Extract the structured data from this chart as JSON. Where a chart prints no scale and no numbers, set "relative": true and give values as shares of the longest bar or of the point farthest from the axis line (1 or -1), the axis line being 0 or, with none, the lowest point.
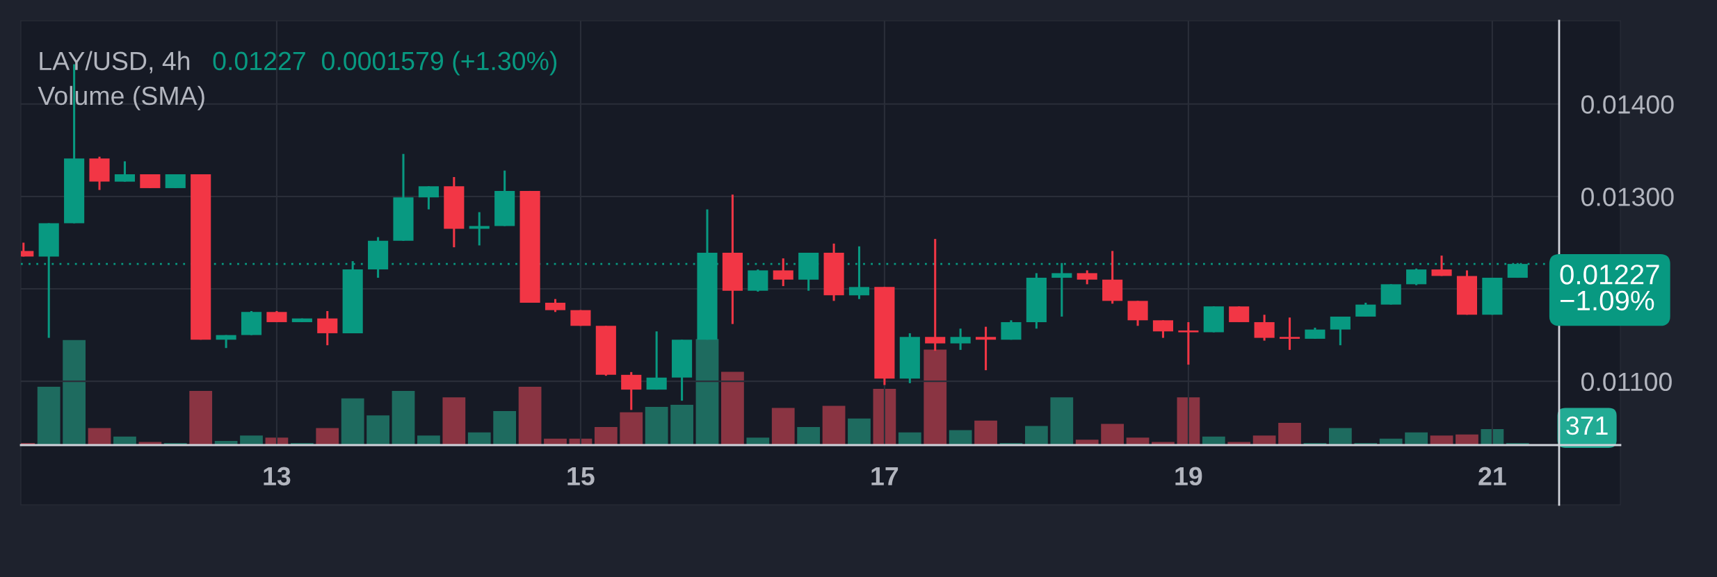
{
  "chart_data": [
    {
      "type": "candlestick",
      "title": "LAY/USD, 4h",
      "annotations": [
        "0.01227  0.0001579 (+1.30%)",
        "Volume (SMA)"
      ],
      "x": [
        11.3333,
        11.5,
        11.6667,
        11.8333,
        12,
        12.1667,
        12.3333,
        12.5,
        12.6667,
        12.8333,
        13,
        13.1667,
        13.3333,
        13.5,
        13.6667,
        13.8333,
        14,
        14.1667,
        14.3333,
        14.5,
        14.6667,
        14.8333,
        15,
        15.1667,
        15.3333,
        15.5,
        15.6667,
        15.8333,
        16,
        16.1667,
        16.3333,
        16.5,
        16.6667,
        16.8333,
        17,
        17.1667,
        17.3333,
        17.5,
        17.6667,
        17.8333,
        18,
        18.1667,
        18.3333,
        18.5,
        18.6667,
        18.8333,
        19,
        19.1667,
        19.3333,
        19.5,
        19.6667,
        19.8333,
        20,
        20.1667,
        20.3333,
        20.5,
        20.6667,
        20.8333,
        21,
        21.1667
      ],
      "xlim": [
        11.316,
        21.44
      ],
      "xticks": [
        13,
        15,
        17,
        19,
        21
      ],
      "ylim": [
        0.01031,
        0.0149
      ],
      "yticks": [
        {
          "value": 0.011,
          "label": "0.01100"
        },
        {
          "value": 0.012,
          "label": null
        },
        {
          "value": 0.013,
          "label": "0.01300"
        },
        {
          "value": 0.014,
          "label": "0.01400"
        }
      ],
      "grid": true,
      "ref_lines": [
        {
          "axis": "y",
          "value": 0.01227,
          "label": "0.01227\n−1.09%",
          "color": "#089981",
          "line_style": "dotted"
        }
      ],
      "ohlc": [
        [
          0.01241,
          0.0125,
          0.01235,
          0.01235
        ],
        [
          0.01235,
          0.01271,
          0.01147,
          0.01271
        ],
        [
          0.01271,
          0.01443,
          0.01271,
          0.01341
        ],
        [
          0.01341,
          0.01343,
          0.01307,
          0.01316
        ],
        [
          0.01316,
          0.01338,
          0.01316,
          0.01324
        ],
        [
          0.01324,
          0.01324,
          0.01309,
          0.01309
        ],
        [
          0.01309,
          0.01324,
          0.01309,
          0.01324
        ],
        [
          0.01324,
          0.01324,
          0.01145,
          0.01145
        ],
        [
          0.01145,
          0.0115,
          0.01136,
          0.0115
        ],
        [
          0.0115,
          0.01176,
          0.0115,
          0.01175
        ],
        [
          0.01175,
          0.01176,
          0.01164,
          0.01164
        ],
        [
          0.01164,
          0.01168,
          0.01164,
          0.01168
        ],
        [
          0.01168,
          0.01176,
          0.01139,
          0.01152
        ],
        [
          0.01152,
          0.0123,
          0.01152,
          0.01221
        ],
        [
          0.01221,
          0.01256,
          0.01212,
          0.01252
        ],
        [
          0.01252,
          0.01346,
          0.01252,
          0.01299
        ],
        [
          0.01299,
          0.01311,
          0.01286,
          0.01311
        ],
        [
          0.01311,
          0.01321,
          0.01245,
          0.01265
        ],
        [
          0.01265,
          0.01283,
          0.01247,
          0.01268
        ],
        [
          0.01268,
          0.01328,
          0.01268,
          0.01306
        ],
        [
          0.01306,
          0.01306,
          0.01185,
          0.01185
        ],
        [
          0.01185,
          0.01189,
          0.01175,
          0.01177
        ],
        [
          0.01177,
          0.01177,
          0.0116,
          0.0116
        ],
        [
          0.0116,
          0.0116,
          0.01106,
          0.01107
        ],
        [
          0.01107,
          0.0111,
          0.01069,
          0.01091
        ],
        [
          0.01091,
          0.01154,
          0.01091,
          0.01104
        ],
        [
          0.01104,
          0.01145,
          0.01079,
          0.01145
        ],
        [
          0.01145,
          0.01286,
          0.01145,
          0.01239
        ],
        [
          0.01239,
          0.01302,
          0.01162,
          0.01198
        ],
        [
          0.01198,
          0.01221,
          0.01197,
          0.0122
        ],
        [
          0.0122,
          0.01233,
          0.01203,
          0.0121
        ],
        [
          0.0121,
          0.01239,
          0.01198,
          0.01239
        ],
        [
          0.01239,
          0.01249,
          0.01187,
          0.01193
        ],
        [
          0.01193,
          0.01246,
          0.01189,
          0.01202
        ],
        [
          0.01202,
          0.01202,
          0.01096,
          0.01103
        ],
        [
          0.01103,
          0.01152,
          0.01098,
          0.01148
        ],
        [
          0.01148,
          0.01254,
          0.01133,
          0.01141
        ],
        [
          0.01141,
          0.01157,
          0.01134,
          0.01148
        ],
        [
          0.01148,
          0.01159,
          0.01112,
          0.01145
        ],
        [
          0.01145,
          0.01166,
          0.01145,
          0.01164
        ],
        [
          0.01164,
          0.01217,
          0.01157,
          0.01212
        ],
        [
          0.01212,
          0.01228,
          0.0117,
          0.01217
        ],
        [
          0.01217,
          0.0122,
          0.01205,
          0.0121
        ],
        [
          0.0121,
          0.01241,
          0.01184,
          0.01187
        ],
        [
          0.01187,
          0.01187,
          0.0116,
          0.01166
        ],
        [
          0.01166,
          0.01166,
          0.01147,
          0.01154
        ],
        [
          0.01155,
          0.01164,
          0.01118,
          0.01153
        ],
        [
          0.01153,
          0.01181,
          0.01153,
          0.01181
        ],
        [
          0.01181,
          0.01181,
          0.01164,
          0.01164
        ],
        [
          0.01164,
          0.01172,
          0.01144,
          0.01147
        ],
        [
          0.01148,
          0.01169,
          0.01134,
          0.01146
        ],
        [
          0.01146,
          0.01158,
          0.01146,
          0.01156
        ],
        [
          0.01156,
          0.0117,
          0.01139,
          0.0117
        ],
        [
          0.0117,
          0.01185,
          0.0117,
          0.01183
        ],
        [
          0.01183,
          0.01205,
          0.01183,
          0.01205
        ],
        [
          0.01205,
          0.01222,
          0.01204,
          0.01221
        ],
        [
          0.01221,
          0.01236,
          0.01214,
          0.01214
        ],
        [
          0.01214,
          0.0122,
          0.01172,
          0.01172
        ],
        [
          0.01172,
          0.01212,
          0.01172,
          0.01212
        ],
        [
          0.01212,
          0.01228,
          0.01212,
          0.01227
        ]
      ],
      "colors": [
        "#f23645",
        "#089981",
        "#089981",
        "#f23645",
        "#089981",
        "#f23645",
        "#089981",
        "#f23645",
        "#089981",
        "#089981",
        "#f23645",
        "#089981",
        "#f23645",
        "#089981",
        "#089981",
        "#089981",
        "#089981",
        "#f23645",
        "#089981",
        "#089981",
        "#f23645",
        "#f23645",
        "#f23645",
        "#f23645",
        "#f23645",
        "#089981",
        "#089981",
        "#089981",
        "#f23645",
        "#089981",
        "#f23645",
        "#089981",
        "#f23645",
        "#089981",
        "#f23645",
        "#089981",
        "#f23645",
        "#089981",
        "#f23645",
        "#089981",
        "#089981",
        "#089981",
        "#f23645",
        "#f23645",
        "#f23645",
        "#f23645",
        "#f23645",
        "#089981",
        "#f23645",
        "#f23645",
        "#f23645",
        "#089981",
        "#089981",
        "#089981",
        "#089981",
        "#089981",
        "#f23645",
        "#f23645",
        "#089981",
        "#089981"
      ]
    },
    {
      "type": "bar",
      "relative": true,
      "xlim": [
        11.316,
        21.44
      ],
      "x": [
        11.3333,
        11.5,
        11.6667,
        11.8333,
        12,
        12.1667,
        12.3333,
        12.5,
        12.6667,
        12.8333,
        13,
        13.1667,
        13.3333,
        13.5,
        13.6667,
        13.8333,
        14,
        14.1667,
        14.3333,
        14.5,
        14.6667,
        14.8333,
        15,
        15.1667,
        15.3333,
        15.5,
        15.6667,
        15.8333,
        16,
        16.1667,
        16.3333,
        16.5,
        16.6667,
        16.8333,
        17,
        17.1667,
        17.3333,
        17.5,
        17.6667,
        17.8333,
        18,
        18.1667,
        18.3333,
        18.5,
        18.6667,
        18.8333,
        19,
        19.1667,
        19.3333,
        19.5,
        19.6667,
        19.8333,
        20,
        20.1667,
        20.3333,
        20.5,
        20.6667,
        20.8333,
        21,
        21.1667
      ],
      "values": [
        0.02,
        0.55,
        0.99,
        0.16,
        0.08,
        0.03,
        0.02,
        0.51,
        0.04,
        0.09,
        0.07,
        0.02,
        0.16,
        0.44,
        0.28,
        0.51,
        0.09,
        0.45,
        0.12,
        0.32,
        0.55,
        0.06,
        0.06,
        0.17,
        0.31,
        0.36,
        0.38,
        1,
        0.69,
        0.07,
        0.35,
        0.17,
        0.37,
        0.25,
        0.53,
        0.12,
        0.9,
        0.14,
        0.23,
        0.02,
        0.18,
        0.45,
        0.05,
        0.2,
        0.07,
        0.03,
        0.45,
        0.08,
        0.03,
        0.09,
        0.21,
        0.02,
        0.16,
        0.02,
        0.06,
        0.12,
        0.09,
        0.1,
        0.15,
        0.02
      ],
      "colors": [
        "#8a3442",
        "#1e6b5f",
        "#1e6b5f",
        "#8a3442",
        "#1e6b5f",
        "#8a3442",
        "#1e6b5f",
        "#8a3442",
        "#1e6b5f",
        "#1e6b5f",
        "#8a3442",
        "#1e6b5f",
        "#8a3442",
        "#1e6b5f",
        "#1e6b5f",
        "#1e6b5f",
        "#1e6b5f",
        "#8a3442",
        "#1e6b5f",
        "#1e6b5f",
        "#8a3442",
        "#8a3442",
        "#8a3442",
        "#8a3442",
        "#8a3442",
        "#1e6b5f",
        "#1e6b5f",
        "#1e6b5f",
        "#8a3442",
        "#1e6b5f",
        "#8a3442",
        "#1e6b5f",
        "#8a3442",
        "#1e6b5f",
        "#8a3442",
        "#1e6b5f",
        "#8a3442",
        "#1e6b5f",
        "#8a3442",
        "#1e6b5f",
        "#1e6b5f",
        "#1e6b5f",
        "#8a3442",
        "#8a3442",
        "#8a3442",
        "#8a3442",
        "#8a3442",
        "#1e6b5f",
        "#8a3442",
        "#8a3442",
        "#8a3442",
        "#1e6b5f",
        "#1e6b5f",
        "#1e6b5f",
        "#1e6b5f",
        "#1e6b5f",
        "#8a3442",
        "#8a3442",
        "#1e6b5f",
        "#1e6b5f"
      ],
      "annotations": [
        "371"
      ]
    }
  ]
}
